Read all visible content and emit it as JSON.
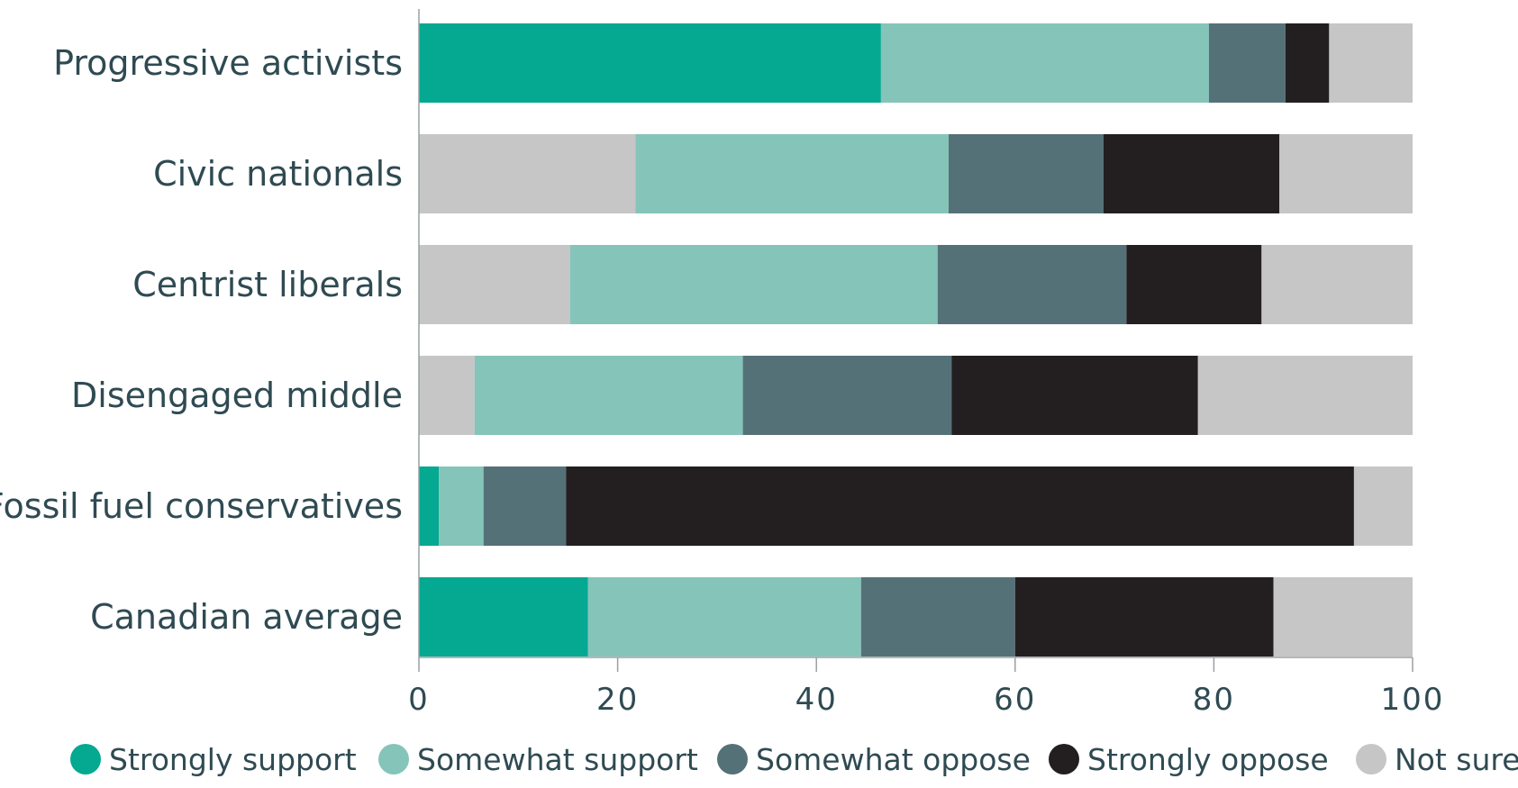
{
  "chart_data": {
    "type": "bar",
    "orientation": "horizontal",
    "stacked": true,
    "categories": [
      "Progressive activists",
      "Civic nationals",
      "Centrist liberals",
      "Disengaged middle",
      "Fossil fuel conservatives",
      "Canadian average"
    ],
    "series": [
      {
        "name": "Strongly support",
        "color": "#05a891",
        "values": [
          46.5,
          0,
          0,
          0,
          2,
          17
        ]
      },
      {
        "name": "Somewhat support",
        "color": "#85c4b9",
        "values": [
          33,
          31.5,
          37,
          27,
          4.5,
          27.5
        ]
      },
      {
        "name": "Somewhat oppose",
        "color": "#557178",
        "values": [
          7.7,
          15.6,
          19,
          21,
          8.3,
          15.5
        ]
      },
      {
        "name": "Strongly oppose",
        "color": "#231f20",
        "values": [
          4.4,
          17.7,
          13.6,
          24.8,
          79.3,
          26
        ]
      },
      {
        "name": "Not sure",
        "color": "#c6c6c6",
        "values": [
          8.4,
          35.2,
          30.4,
          27.2,
          5.9,
          14
        ]
      }
    ],
    "not_sure_leading": [
      0,
      21.8,
      15.2,
      5.6,
      0,
      0
    ],
    "xlim": [
      0,
      100
    ],
    "xticks": [
      "0",
      "20",
      "40",
      "60",
      "80",
      "100"
    ],
    "legend_position": "bottom",
    "grid": false
  }
}
